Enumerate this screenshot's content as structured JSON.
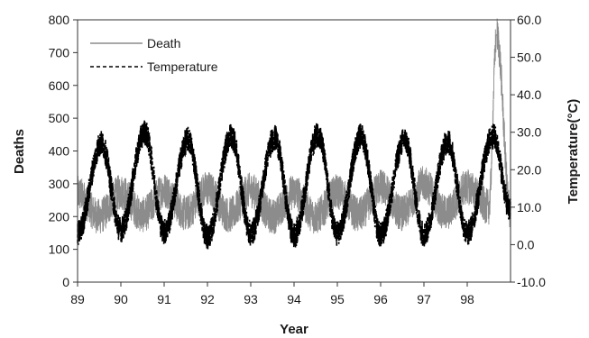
{
  "chart_data": {
    "type": "line",
    "title": "",
    "xlabel": "Year",
    "ylabel_left": "Deaths",
    "ylabel_right": "Temperature(°C)",
    "x_ticks": [
      "89",
      "90",
      "91",
      "92",
      "93",
      "94",
      "95",
      "96",
      "97",
      "98"
    ],
    "xlim": [
      89,
      99
    ],
    "ylim_left": [
      0,
      800
    ],
    "ylim_right": [
      -10,
      60
    ],
    "y_ticks_left": [
      "0",
      "100",
      "200",
      "300",
      "400",
      "500",
      "600",
      "700",
      "800"
    ],
    "y_ticks_right": [
      "-10.0",
      "0.0",
      "10.0",
      "20.0",
      "30.0",
      "40.0",
      "50.0",
      "60.0"
    ],
    "grid": false,
    "legend_position": "top-left",
    "series": [
      {
        "name": "Death",
        "axis": "left",
        "style": "solid",
        "color": "#8c8c8c",
        "description_points": {
          "x": [
            89.0,
            89.5,
            90.0,
            90.5,
            91.0,
            91.5,
            92.0,
            92.5,
            93.0,
            93.5,
            94.0,
            94.5,
            95.0,
            95.5,
            96.0,
            96.5,
            97.0,
            97.5,
            98.0,
            98.5,
            98.68,
            99.0
          ],
          "y": [
            270,
            200,
            275,
            205,
            280,
            210,
            285,
            205,
            280,
            200,
            275,
            200,
            275,
            205,
            290,
            210,
            300,
            210,
            290,
            230,
            755,
            215
          ]
        }
      },
      {
        "name": "Temperature",
        "axis": "right",
        "style": "dashed",
        "color": "#000000",
        "description_points": {
          "x": [
            89.0,
            89.55,
            90.0,
            90.55,
            91.0,
            91.55,
            92.0,
            92.55,
            93.0,
            93.55,
            94.0,
            94.55,
            95.0,
            95.55,
            96.0,
            96.55,
            97.0,
            97.55,
            98.0,
            98.6,
            99.0
          ],
          "y": [
            3.0,
            27.0,
            4.0,
            30.0,
            3.5,
            28.0,
            2.0,
            29.0,
            3.0,
            28.5,
            2.5,
            29.5,
            2.8,
            29.0,
            2.5,
            28.0,
            2.8,
            27.5,
            3.0,
            29.0,
            9.0
          ]
        }
      }
    ],
    "legend": [
      {
        "label": "Death",
        "style": "solid"
      },
      {
        "label": "Temperature",
        "style": "dashed"
      }
    ]
  }
}
